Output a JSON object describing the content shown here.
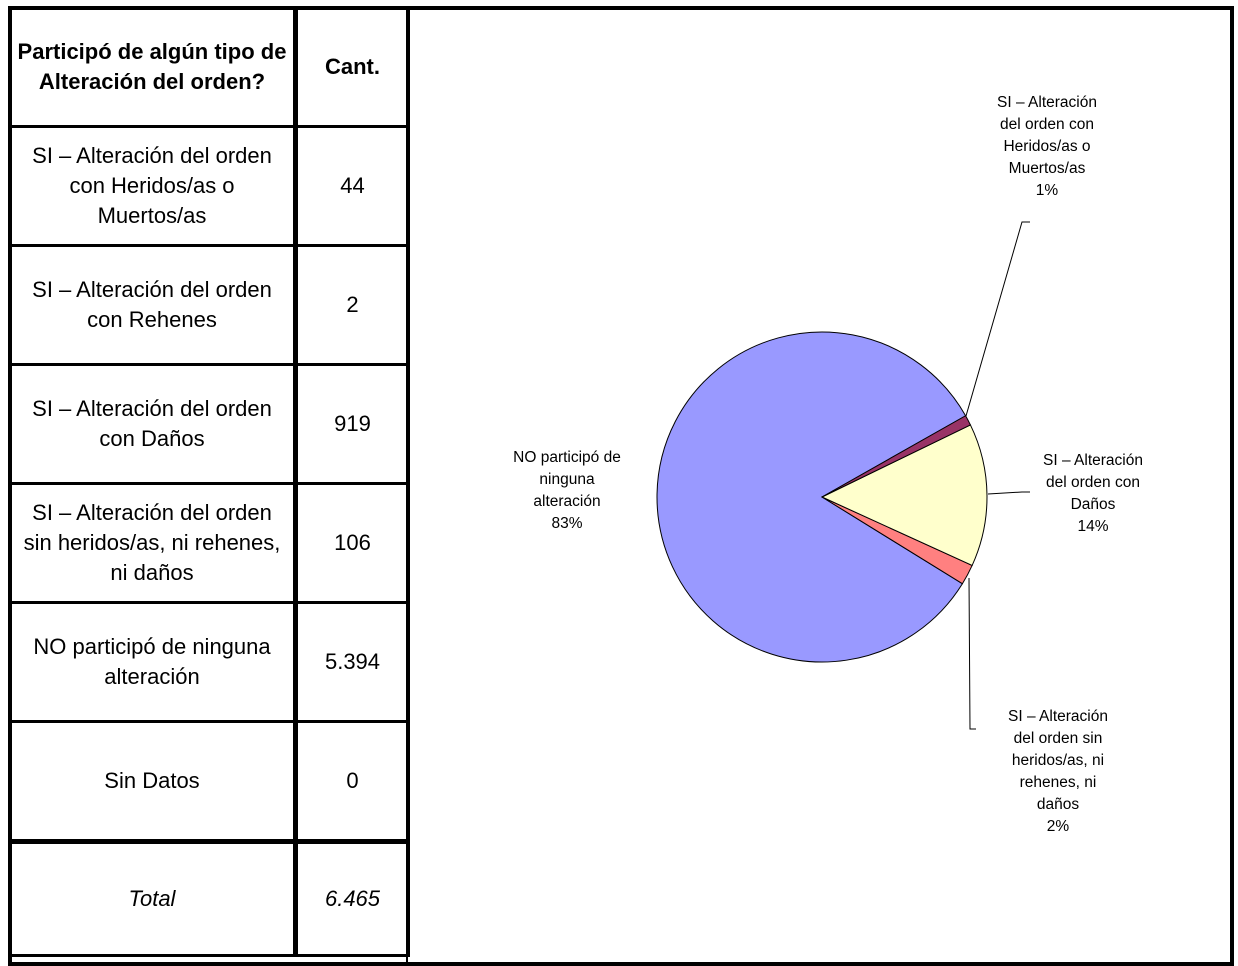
{
  "table": {
    "header": [
      "Participó de algún tipo de Alteración del orden?",
      "Cant."
    ],
    "rows": [
      [
        "SI – Alteración del orden con Heridos/as o Muertos/as",
        "44"
      ],
      [
        "SI – Alteración del orden con Rehenes",
        "2"
      ],
      [
        "SI – Alteración del orden con Daños",
        "919"
      ],
      [
        "SI – Alteración del orden sin heridos/as, ni rehenes, ni daños",
        "106"
      ],
      [
        "NO participó de ninguna alteración",
        "5.394"
      ],
      [
        "Sin Datos",
        "0"
      ]
    ],
    "total": [
      "Total",
      "6.465"
    ]
  },
  "chart_data": {
    "type": "pie",
    "categories": [
      "SI – Alteración del orden con Heridos/as o Muertos/as",
      "SI – Alteración del orden con Daños",
      "SI – Alteración del orden sin heridos/as, ni rehenes, ni daños",
      "NO participó de ninguna alteración"
    ],
    "values": [
      1,
      14,
      2,
      83
    ],
    "value_labels": [
      "1%",
      "14%",
      "2%",
      "83%"
    ],
    "colors": [
      "#993366",
      "#ffffcc",
      "#ff8080",
      "#9999ff"
    ]
  }
}
